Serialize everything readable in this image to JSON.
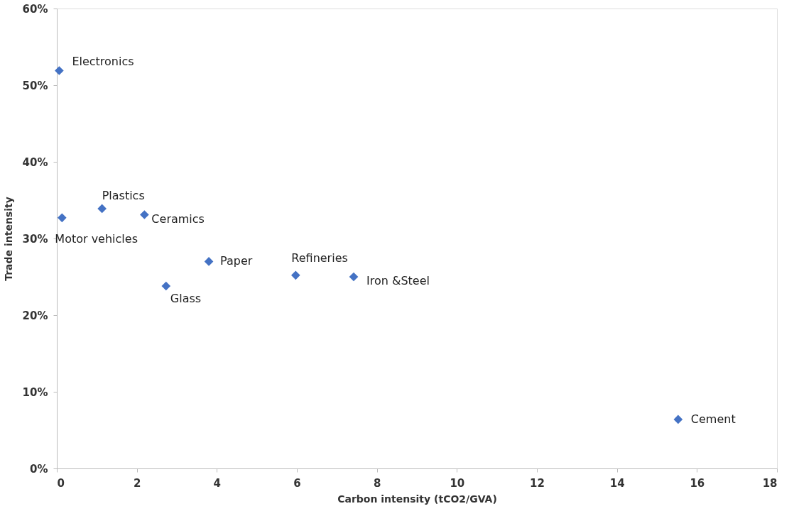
{
  "chart_data": {
    "type": "scatter",
    "xlabel": "Carbon intensity (tCO2/GVA)",
    "ylabel": "Trade intensity",
    "series": [
      {
        "color": "#4472c4",
        "x": [
          0.06,
          0.13,
          1.13,
          2.19,
          2.73,
          3.8,
          5.97,
          7.42,
          15.53
        ],
        "values": [
          51.9,
          32.7,
          33.9,
          33.1,
          23.8,
          27.0,
          25.2,
          25.0,
          6.4
        ]
      }
    ],
    "annotations": [
      {
        "text": "Electronics",
        "x": 0.06,
        "y": 51.9
      },
      {
        "text": "Motor vehicles",
        "x": 0.13,
        "y": 32.7
      },
      {
        "text": "Plastics",
        "x": 1.13,
        "y": 33.9
      },
      {
        "text": "Ceramics",
        "x": 2.19,
        "y": 33.1
      },
      {
        "text": "Glass",
        "x": 2.73,
        "y": 23.8
      },
      {
        "text": "Paper",
        "x": 3.8,
        "y": 27.0
      },
      {
        "text": "Refineries",
        "x": 5.97,
        "y": 25.2
      },
      {
        "text": "Iron &Steel",
        "x": 7.42,
        "y": 25.0
      },
      {
        "text": "Cement",
        "x": 15.53,
        "y": 6.4
      }
    ],
    "xlim": [
      0,
      18
    ],
    "xticks": [
      0,
      2,
      4,
      6,
      8,
      10,
      12,
      14,
      16,
      18
    ],
    "ylim": [
      0,
      60
    ],
    "yticks": [
      {
        "value": 0,
        "label": "0%"
      },
      {
        "value": 10,
        "label": "10%"
      },
      {
        "value": 20,
        "label": "20%"
      },
      {
        "value": 30,
        "label": "30%"
      },
      {
        "value": 40,
        "label": "40%"
      },
      {
        "value": 50,
        "label": "50%"
      },
      {
        "value": 60,
        "label": "60%"
      }
    ],
    "marker": "diamond",
    "grid": false
  }
}
